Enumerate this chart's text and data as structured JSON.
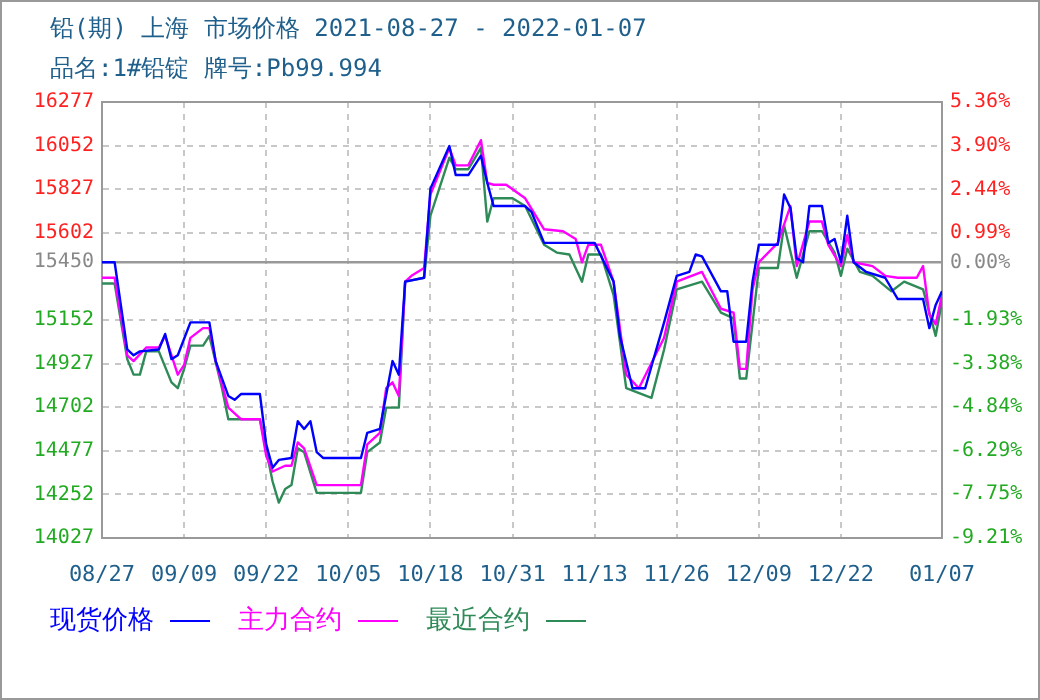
{
  "chart_data": {
    "type": "line",
    "title": "铅(期) 上海 市场价格 2021-08-27 - 2022-01-07",
    "subtitle": "品名:1#铅锭 牌号:Pb99.994",
    "xlim": [
      "2021-08-27",
      "2022-01-07"
    ],
    "xticks": [
      {
        "value": "2021-08-27",
        "label": "08/27"
      },
      {
        "value": "2021-09-09",
        "label": "09/09"
      },
      {
        "value": "2021-09-22",
        "label": "09/22"
      },
      {
        "value": "2021-10-05",
        "label": "10/05"
      },
      {
        "value": "2021-10-18",
        "label": "10/18"
      },
      {
        "value": "2021-10-31",
        "label": "10/31"
      },
      {
        "value": "2021-11-13",
        "label": "11/13"
      },
      {
        "value": "2021-11-26",
        "label": "11/26"
      },
      {
        "value": "2021-12-09",
        "label": "12/09"
      },
      {
        "value": "2021-12-22",
        "label": "12/22"
      },
      {
        "value": "2022-01-07",
        "label": "01/07"
      }
    ],
    "ylim": [
      14027,
      16277
    ],
    "yticks": [
      14027,
      14252,
      14477,
      14702,
      14927,
      15152,
      15450,
      15602,
      15827,
      16052,
      16277
    ],
    "y2lim": [
      -9.21,
      5.36
    ],
    "y2ticks": [
      {
        "value": -9.21,
        "label": "-9.21%"
      },
      {
        "value": -7.75,
        "label": "-7.75%"
      },
      {
        "value": -6.29,
        "label": "-6.29%"
      },
      {
        "value": -4.84,
        "label": "-4.84%"
      },
      {
        "value": -3.38,
        "label": "-3.38%"
      },
      {
        "value": -1.93,
        "label": "-1.93%"
      },
      {
        "value": 0,
        "label": "0.00%"
      },
      {
        "value": 0.99,
        "label": "0.99%"
      },
      {
        "value": 2.44,
        "label": "2.44%"
      },
      {
        "value": 3.9,
        "label": "3.90%"
      },
      {
        "value": 5.36,
        "label": "5.36%"
      }
    ],
    "ref_lines": [
      {
        "axis": "y",
        "value": 15450,
        "color": "#999999",
        "line_style": "solid"
      }
    ],
    "grid": true,
    "legend": "bottom",
    "marker": "none",
    "line_style": "solid",
    "series": [
      {
        "name": "现货价格",
        "color": "#0000ff",
        "x": [
          "2021-08-27",
          "2021-08-29",
          "2021-08-31",
          "2021-09-01",
          "2021-09-02",
          "2021-09-05",
          "2021-09-06",
          "2021-09-07",
          "2021-09-08",
          "2021-09-10",
          "2021-09-13",
          "2021-09-14",
          "2021-09-16",
          "2021-09-17",
          "2021-09-18",
          "2021-09-21",
          "2021-09-22",
          "2021-09-23",
          "2021-09-24",
          "2021-09-26",
          "2021-09-27",
          "2021-09-28",
          "2021-09-29",
          "2021-09-30",
          "2021-10-01",
          "2021-10-07",
          "2021-10-08",
          "2021-10-10",
          "2021-10-12",
          "2021-10-13",
          "2021-10-14",
          "2021-10-17",
          "2021-10-18",
          "2021-10-21",
          "2021-10-22",
          "2021-10-24",
          "2021-10-26",
          "2021-10-27",
          "2021-10-28",
          "2021-11-02",
          "2021-11-03",
          "2021-11-05",
          "2021-11-06",
          "2021-11-13",
          "2021-11-16",
          "2021-11-17",
          "2021-11-19",
          "2021-11-21",
          "2021-11-24",
          "2021-11-26",
          "2021-11-28",
          "2021-11-29",
          "2021-11-30",
          "2021-12-03",
          "2021-12-04",
          "2021-12-05",
          "2021-12-07",
          "2021-12-08",
          "2021-12-09",
          "2021-12-12",
          "2021-12-13",
          "2021-12-14",
          "2021-12-15",
          "2021-12-16",
          "2021-12-17",
          "2021-12-19",
          "2021-12-20",
          "2021-12-21",
          "2021-12-22",
          "2021-12-23",
          "2021-12-24",
          "2021-12-26",
          "2021-12-29",
          "2021-12-31",
          "2022-01-04",
          "2022-01-05",
          "2022-01-06",
          "2022-01-07"
        ],
        "values": [
          15450,
          15450,
          15000,
          14970,
          14990,
          15000,
          15080,
          14950,
          14970,
          15140,
          15140,
          14940,
          14760,
          14740,
          14770,
          14770,
          14510,
          14390,
          14430,
          14440,
          14630,
          14590,
          14630,
          14470,
          14440,
          14440,
          14570,
          14590,
          14940,
          14870,
          15350,
          15370,
          15830,
          16050,
          15900,
          15900,
          16000,
          15860,
          15740,
          15740,
          15710,
          15550,
          15550,
          15550,
          15350,
          15070,
          14800,
          14800,
          15140,
          15380,
          15400,
          15490,
          15480,
          15300,
          15300,
          15040,
          15040,
          15350,
          15540,
          15540,
          15800,
          15730,
          15470,
          15450,
          15740,
          15740,
          15550,
          15570,
          15450,
          15690,
          15450,
          15400,
          15370,
          15260,
          15260,
          15110,
          15230,
          15300
        ]
      },
      {
        "name": "主力合约",
        "color": "#ff00ff",
        "x": [
          "2021-08-27",
          "2021-08-29",
          "2021-08-31",
          "2021-09-01",
          "2021-09-03",
          "2021-09-05",
          "2021-09-06",
          "2021-09-08",
          "2021-09-09",
          "2021-09-10",
          "2021-09-12",
          "2021-09-13",
          "2021-09-14",
          "2021-09-16",
          "2021-09-18",
          "2021-09-21",
          "2021-09-22",
          "2021-09-23",
          "2021-09-25",
          "2021-09-26",
          "2021-09-27",
          "2021-09-28",
          "2021-09-30",
          "2021-10-07",
          "2021-10-08",
          "2021-10-10",
          "2021-10-11",
          "2021-10-12",
          "2021-10-13",
          "2021-10-14",
          "2021-10-15",
          "2021-10-17",
          "2021-10-18",
          "2021-10-21",
          "2021-10-22",
          "2021-10-24",
          "2021-10-26",
          "2021-10-27",
          "2021-10-28",
          "2021-10-30",
          "2021-11-02",
          "2021-11-05",
          "2021-11-08",
          "2021-11-10",
          "2021-11-11",
          "2021-11-12",
          "2021-11-14",
          "2021-11-16",
          "2021-11-18",
          "2021-11-20",
          "2021-11-24",
          "2021-11-26",
          "2021-11-30",
          "2021-12-03",
          "2021-12-05",
          "2021-12-06",
          "2021-12-07",
          "2021-12-08",
          "2021-12-09",
          "2021-12-12",
          "2021-12-14",
          "2021-12-15",
          "2021-12-17",
          "2021-12-19",
          "2021-12-20",
          "2021-12-22",
          "2021-12-23",
          "2021-12-24",
          "2021-12-27",
          "2021-12-29",
          "2021-12-31",
          "2022-01-03",
          "2022-01-04",
          "2022-01-05",
          "2022-01-06",
          "2022-01-07"
        ],
        "values": [
          15370,
          15370,
          14970,
          14940,
          15010,
          15010,
          15070,
          14870,
          14920,
          15060,
          15110,
          15110,
          14940,
          14700,
          14640,
          14640,
          14450,
          14370,
          14400,
          14400,
          14520,
          14490,
          14300,
          14300,
          14510,
          14570,
          14800,
          14830,
          14760,
          15350,
          15380,
          15420,
          15800,
          16040,
          15950,
          15950,
          16080,
          15860,
          15850,
          15850,
          15780,
          15620,
          15610,
          15570,
          15450,
          15540,
          15540,
          15350,
          14870,
          14800,
          15060,
          15350,
          15400,
          15210,
          15190,
          14900,
          14900,
          15310,
          15450,
          15550,
          15740,
          15430,
          15660,
          15660,
          15540,
          15430,
          15590,
          15450,
          15430,
          15380,
          15370,
          15370,
          15430,
          15180,
          15130,
          15280
        ]
      },
      {
        "name": "最近合约",
        "color": "#2e8b57",
        "x": [
          "2021-08-27",
          "2021-08-29",
          "2021-08-31",
          "2021-09-01",
          "2021-09-02",
          "2021-09-03",
          "2021-09-05",
          "2021-09-07",
          "2021-09-08",
          "2021-09-09",
          "2021-09-10",
          "2021-09-12",
          "2021-09-13",
          "2021-09-15",
          "2021-09-16",
          "2021-09-21",
          "2021-09-23",
          "2021-09-24",
          "2021-09-25",
          "2021-09-26",
          "2021-09-27",
          "2021-09-28",
          "2021-09-30",
          "2021-10-07",
          "2021-10-08",
          "2021-10-10",
          "2021-10-11",
          "2021-10-13",
          "2021-10-14",
          "2021-10-17",
          "2021-10-18",
          "2021-10-21",
          "2021-10-22",
          "2021-10-24",
          "2021-10-26",
          "2021-10-27",
          "2021-10-28",
          "2021-10-31",
          "2021-11-02",
          "2021-11-05",
          "2021-11-07",
          "2021-11-09",
          "2021-11-11",
          "2021-11-12",
          "2021-11-14",
          "2021-11-16",
          "2021-11-18",
          "2021-11-22",
          "2021-11-24",
          "2021-11-26",
          "2021-11-30",
          "2021-12-03",
          "2021-12-05",
          "2021-12-06",
          "2021-12-07",
          "2021-12-09",
          "2021-12-12",
          "2021-12-13",
          "2021-12-15",
          "2021-12-17",
          "2021-12-19",
          "2021-12-21",
          "2021-12-22",
          "2021-12-23",
          "2021-12-25",
          "2021-12-27",
          "2021-12-30",
          "2022-01-01",
          "2022-01-04",
          "2022-01-06",
          "2022-01-07"
        ],
        "values": [
          15340,
          15340,
          14950,
          14870,
          14870,
          14990,
          14990,
          14830,
          14800,
          14900,
          15020,
          15020,
          15070,
          14800,
          14640,
          14640,
          14320,
          14210,
          14280,
          14300,
          14490,
          14470,
          14260,
          14260,
          14470,
          14520,
          14700,
          14700,
          15350,
          15370,
          15690,
          15990,
          15930,
          15930,
          16040,
          15660,
          15780,
          15780,
          15740,
          15540,
          15500,
          15490,
          15350,
          15490,
          15490,
          15280,
          14800,
          14750,
          15000,
          15310,
          15350,
          15190,
          15160,
          14850,
          14850,
          15420,
          15420,
          15640,
          15370,
          15610,
          15610,
          15500,
          15380,
          15520,
          15400,
          15380,
          15300,
          15350,
          15310,
          15070,
          15250
        ]
      }
    ]
  }
}
